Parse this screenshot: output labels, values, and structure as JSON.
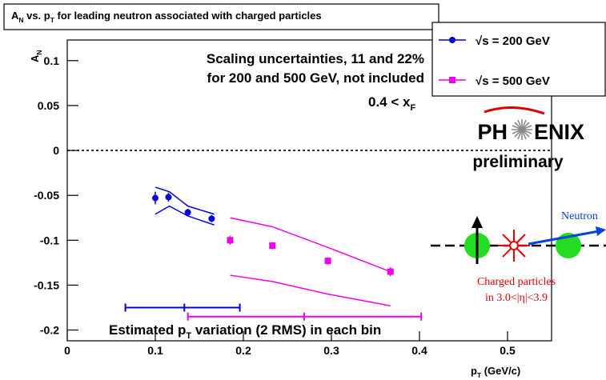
{
  "chart_data": {
    "type": "scatter",
    "title_parts": [
      "A",
      "N",
      " vs. p",
      "T",
      " for leading neutron associated with charged particles"
    ],
    "ylabel_parts": [
      "A",
      "N"
    ],
    "xlabel_parts": [
      "p",
      "T",
      " (GeV/c)"
    ],
    "xlim": [
      0,
      0.55
    ],
    "ylim": [
      -0.212,
      0.123
    ],
    "xticks": [
      0,
      0.1,
      0.2,
      0.3,
      0.4,
      0.5
    ],
    "yticks": [
      0.1,
      0.05,
      0,
      -0.05,
      -0.1,
      -0.15,
      -0.2
    ],
    "zero_line": 0,
    "series": [
      {
        "name": "√s = 200 GeV",
        "color": "#0000dd",
        "marker": "circle",
        "x": [
          0.1,
          0.115,
          0.137,
          0.164
        ],
        "values": [
          -0.053,
          -0.052,
          -0.069,
          -0.076
        ],
        "errors": [
          0.007,
          0.005,
          0.004,
          0.004
        ],
        "band_x": [
          0.1,
          0.116,
          0.137,
          0.167
        ],
        "band_upper": [
          -0.041,
          -0.046,
          -0.062,
          -0.071
        ],
        "band_lower": [
          -0.071,
          -0.062,
          -0.073,
          -0.083
        ],
        "rms": {
          "y": -0.175,
          "x": [
            0.066,
            0.133,
            0.196
          ]
        }
      },
      {
        "name": "√s = 500 GeV",
        "color": "#ee00ee",
        "marker": "square",
        "x": [
          0.185,
          0.233,
          0.296,
          0.367
        ],
        "values": [
          -0.1,
          -0.106,
          -0.123,
          -0.135
        ],
        "errors": [
          0.005,
          0.004,
          0.004,
          0.005
        ],
        "band_x": [
          0.185,
          0.233,
          0.296,
          0.367
        ],
        "band_upper": [
          -0.075,
          -0.085,
          -0.108,
          -0.135
        ],
        "band_lower": [
          -0.139,
          -0.146,
          -0.16,
          -0.173
        ],
        "rms": {
          "y": -0.185,
          "x": [
            0.137,
            0.269,
            0.402
          ]
        }
      }
    ],
    "annotations": [
      "Scaling uncertainties, 11 and 22%",
      "for 200 and 500 GeV, not included"
    ],
    "xf_parts": [
      "0.4 < x",
      "F"
    ],
    "rms_note_parts": [
      "Estimated p",
      "T",
      " variation (2 RMS) in each bin"
    ],
    "logo": [
      "PH",
      "ENIX"
    ],
    "preliminary": "preliminary",
    "diagram": {
      "neutron": "Neutron",
      "charged": [
        "Charged particles",
        "in 3.0<|η|<3.9"
      ]
    }
  }
}
